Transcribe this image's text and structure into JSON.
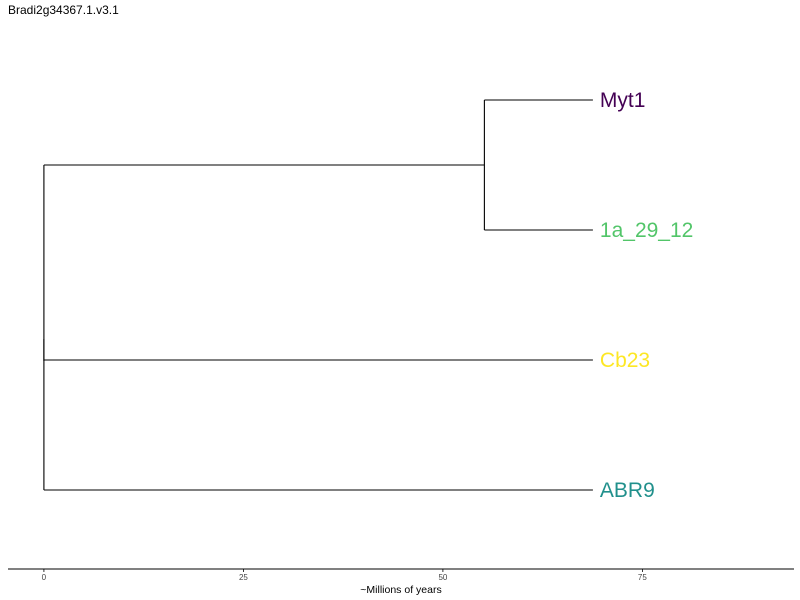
{
  "title": "Bradi2g34367.1.v3.1",
  "axis": {
    "title": "~Millions of years",
    "ticks": [
      0,
      25,
      50,
      75
    ],
    "range": [
      -4.5,
      94
    ]
  },
  "tree": {
    "root_node": {
      "x": 0
    },
    "inner_node": {
      "x": 55.2
    },
    "leaf_x": 68.8,
    "leaves": [
      {
        "label": "Myt1",
        "color": "#440154"
      },
      {
        "label": "1a_29_12",
        "color": "#52C569"
      },
      {
        "label": "Cb23",
        "color": "#FDE725"
      },
      {
        "label": "ABR9",
        "color": "#21908C"
      }
    ]
  }
}
